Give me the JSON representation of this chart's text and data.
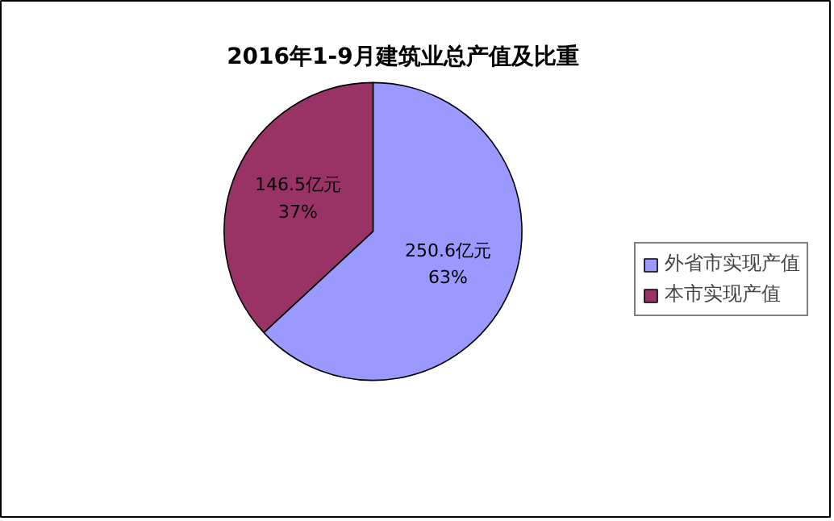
{
  "chart_data": {
    "type": "pie",
    "title": "2016年1-9月建筑业总产值及比重",
    "categories": [
      "外省市实现产值",
      "本市实现产值"
    ],
    "values": [
      250.6,
      146.5
    ],
    "colors": [
      "#9999ff",
      "#993366"
    ],
    "value_labels": [
      "250.6亿元\n63%",
      "146.5亿元\n37%"
    ],
    "legend": "right"
  }
}
